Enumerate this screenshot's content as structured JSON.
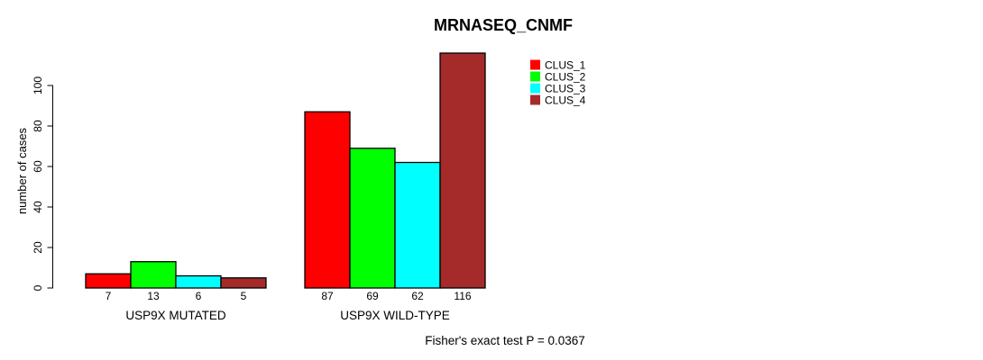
{
  "chart_data": {
    "type": "bar",
    "title": "MRNASEQ_CNMF",
    "ylabel": "number of cases",
    "xlabel": "",
    "ylim": [
      0,
      116
    ],
    "yticks": [
      0,
      20,
      40,
      60,
      80,
      100
    ],
    "grid": false,
    "legend_position": "top-right",
    "value_labels_shown": true,
    "categories": [
      "USP9X MUTATED",
      "USP9X WILD-TYPE"
    ],
    "series": [
      {
        "name": "CLUS_1",
        "color": "#ff0000",
        "values": [
          7,
          87
        ]
      },
      {
        "name": "CLUS_2",
        "color": "#00ff00",
        "values": [
          13,
          69
        ]
      },
      {
        "name": "CLUS_3",
        "color": "#00ffff",
        "values": [
          6,
          62
        ]
      },
      {
        "name": "CLUS_4",
        "color": "#a52a2a",
        "values": [
          5,
          116
        ]
      }
    ],
    "bar_value_labels": [
      [
        7,
        13,
        6,
        5
      ],
      [
        87,
        69,
        62,
        116
      ]
    ],
    "footnote": "Fisher's exact test P = 0.0367",
    "axis_color": "#000000",
    "bar_border_color": "#000000"
  }
}
